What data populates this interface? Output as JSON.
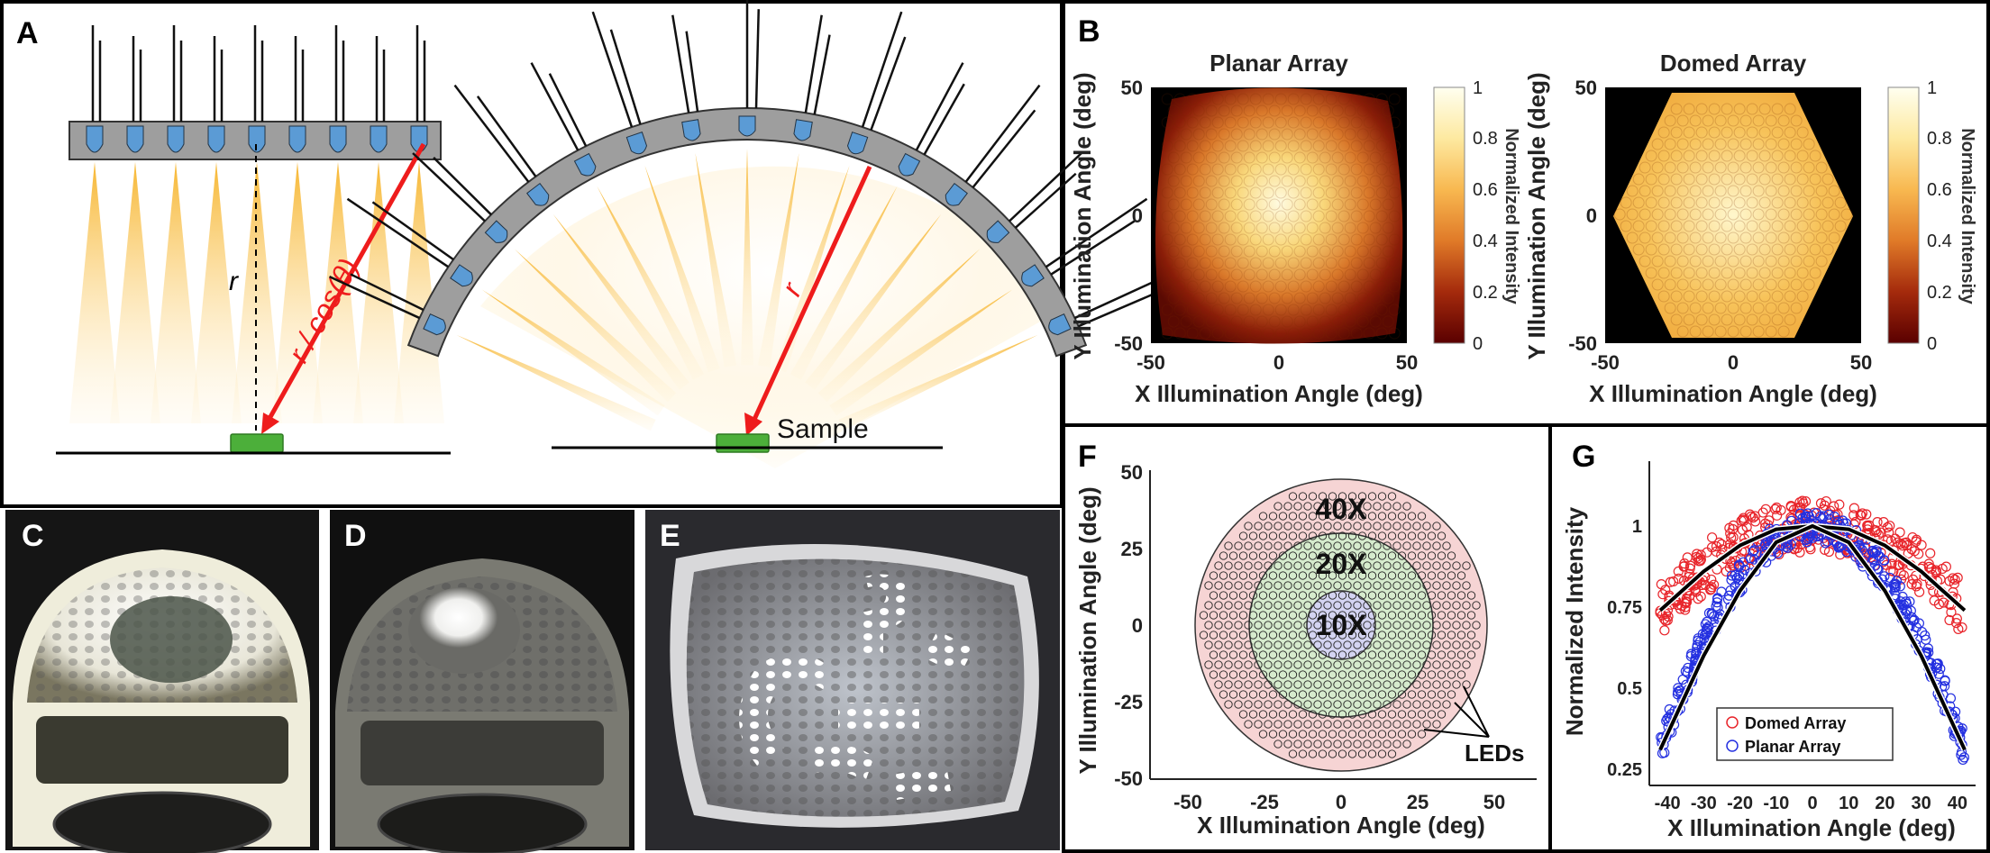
{
  "panels": {
    "A": {
      "letter": "A",
      "left_labels": {
        "r": "r",
        "slant": "r / cos(θ)"
      },
      "right_labels": {
        "r": "r",
        "sample": "Sample"
      }
    },
    "B": {
      "letter": "B",
      "planar_title": "Planar Array",
      "domed_title": "Domed Array",
      "xlabel": "X Illumination Angle (deg)",
      "ylabel": "Y Illumination Angle (deg)",
      "colorbar_label": "Normalized Intensity",
      "x_ticks": [
        "-50",
        "0",
        "50"
      ],
      "y_ticks": [
        "50",
        "0",
        "-50"
      ],
      "colorbar_ticks": [
        "1",
        "0.8",
        "0.6",
        "0.4",
        "0.2",
        "0"
      ]
    },
    "C": {
      "letter": "C"
    },
    "D": {
      "letter": "D"
    },
    "E": {
      "letter": "E"
    },
    "F": {
      "letter": "F",
      "xlabel": "X Illumination Angle (deg)",
      "ylabel": "Y Illumination Angle (deg)",
      "zones": [
        "40X",
        "20X",
        "10X"
      ],
      "leds_label": "LEDs",
      "x_ticks": [
        "-50",
        "-25",
        "0",
        "25",
        "50"
      ],
      "y_ticks": [
        "50",
        "25",
        "0",
        "-25",
        "-50"
      ]
    },
    "G": {
      "letter": "G",
      "xlabel": "X Illumination Angle (deg)",
      "ylabel": "Normalized Intensity",
      "x_ticks": [
        "-40",
        "-30",
        "-20",
        "-10",
        "0",
        "10",
        "20",
        "30",
        "40"
      ],
      "y_ticks": [
        "1",
        "0.75",
        "0.5",
        "0.25"
      ],
      "legend": [
        "Domed Array",
        "Planar Array"
      ]
    }
  },
  "colors": {
    "domed": "#e8242a",
    "planar": "#2430e0",
    "led": "#5b9bd5",
    "arrow": "#ee1c1c",
    "sample": "#4caf3a",
    "zone_40x": "#f6d4d4",
    "zone_20x": "#d6ebcd",
    "zone_10x": "#d4d4f2"
  },
  "chart_data": [
    {
      "type": "scatter",
      "panel": "G",
      "xlabel": "X Illumination Angle (deg)",
      "ylabel": "Normalized Intensity",
      "xlim": [
        -45,
        45
      ],
      "ylim": [
        0.2,
        1.2
      ],
      "series": [
        {
          "name": "Domed Array",
          "fit": {
            "x": [
              -42,
              -30,
              -20,
              -10,
              0,
              10,
              20,
              30,
              42
            ],
            "y": [
              0.74,
              0.86,
              0.94,
              0.99,
              1.0,
              0.99,
              0.94,
              0.86,
              0.74
            ]
          }
        },
        {
          "name": "Planar Array",
          "fit": {
            "x": [
              -42,
              -30,
              -20,
              -10,
              0,
              10,
              20,
              30,
              42
            ],
            "y": [
              0.31,
              0.6,
              0.8,
              0.95,
              1.0,
              0.95,
              0.8,
              0.6,
              0.31
            ]
          }
        }
      ]
    },
    {
      "type": "heatmap",
      "panel": "B",
      "title": "Planar Array",
      "xlim": [
        -50,
        50
      ],
      "ylim": [
        -50,
        50
      ],
      "colorbar_range": [
        0,
        1
      ]
    },
    {
      "type": "heatmap",
      "panel": "B",
      "title": "Domed Array",
      "xlim": [
        -50,
        50
      ],
      "ylim": [
        -50,
        50
      ],
      "colorbar_range": [
        0,
        1
      ]
    }
  ]
}
